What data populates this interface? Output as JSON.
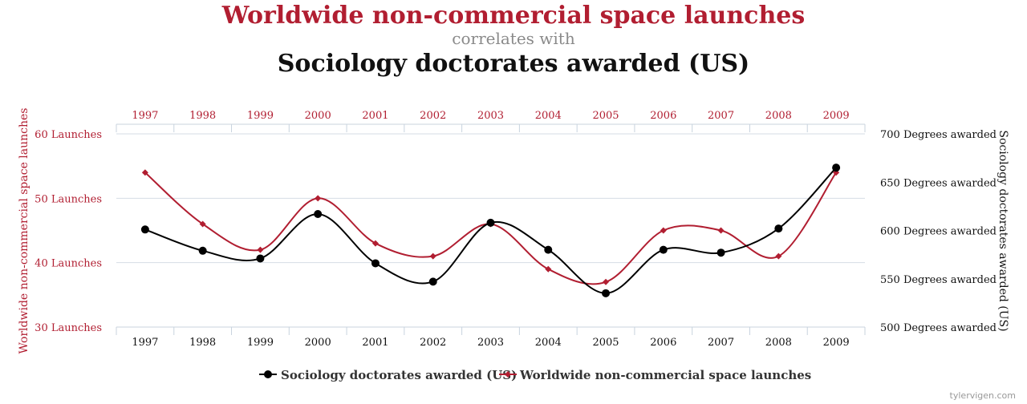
{
  "header": {
    "title_series_a": "Worldwide non-commercial space launches",
    "connector": "correlates with",
    "title_series_b": "Sociology doctorates awarded (US)"
  },
  "chart_data": {
    "type": "line",
    "x": [
      "1997",
      "1998",
      "1999",
      "2000",
      "2001",
      "2002",
      "2003",
      "2004",
      "2005",
      "2006",
      "2007",
      "2008",
      "2009"
    ],
    "series": [
      {
        "name": "Worldwide non-commercial space launches",
        "axis": "left",
        "color": "#b11e31",
        "marker": "diamond",
        "values": [
          54,
          46,
          42,
          50,
          43,
          41,
          46,
          39,
          37,
          45,
          45,
          41,
          54
        ]
      },
      {
        "name": "Sociology doctorates awarded (US)",
        "axis": "right",
        "color": "#000000",
        "marker": "circle",
        "values": [
          601,
          579,
          571,
          617,
          566,
          547,
          608,
          580,
          535,
          580,
          577,
          602,
          665
        ]
      }
    ],
    "left_axis": {
      "label": "Worldwide non-commercial space launches",
      "range": [
        30,
        60
      ],
      "ticks": [
        30,
        40,
        50,
        60
      ],
      "tick_suffix": " Launches"
    },
    "right_axis": {
      "label": "Sociology doctorates awarded (US)",
      "range": [
        500,
        700
      ],
      "ticks": [
        500,
        550,
        600,
        650,
        700
      ],
      "tick_suffix": " Degrees awarded"
    },
    "grid": "horizontal",
    "legend_position": "bottom-center"
  },
  "legend": {
    "items": [
      "Sociology doctorates awarded (US)",
      "Worldwide non-commercial space launches"
    ]
  },
  "credit": "tylervigen.com"
}
